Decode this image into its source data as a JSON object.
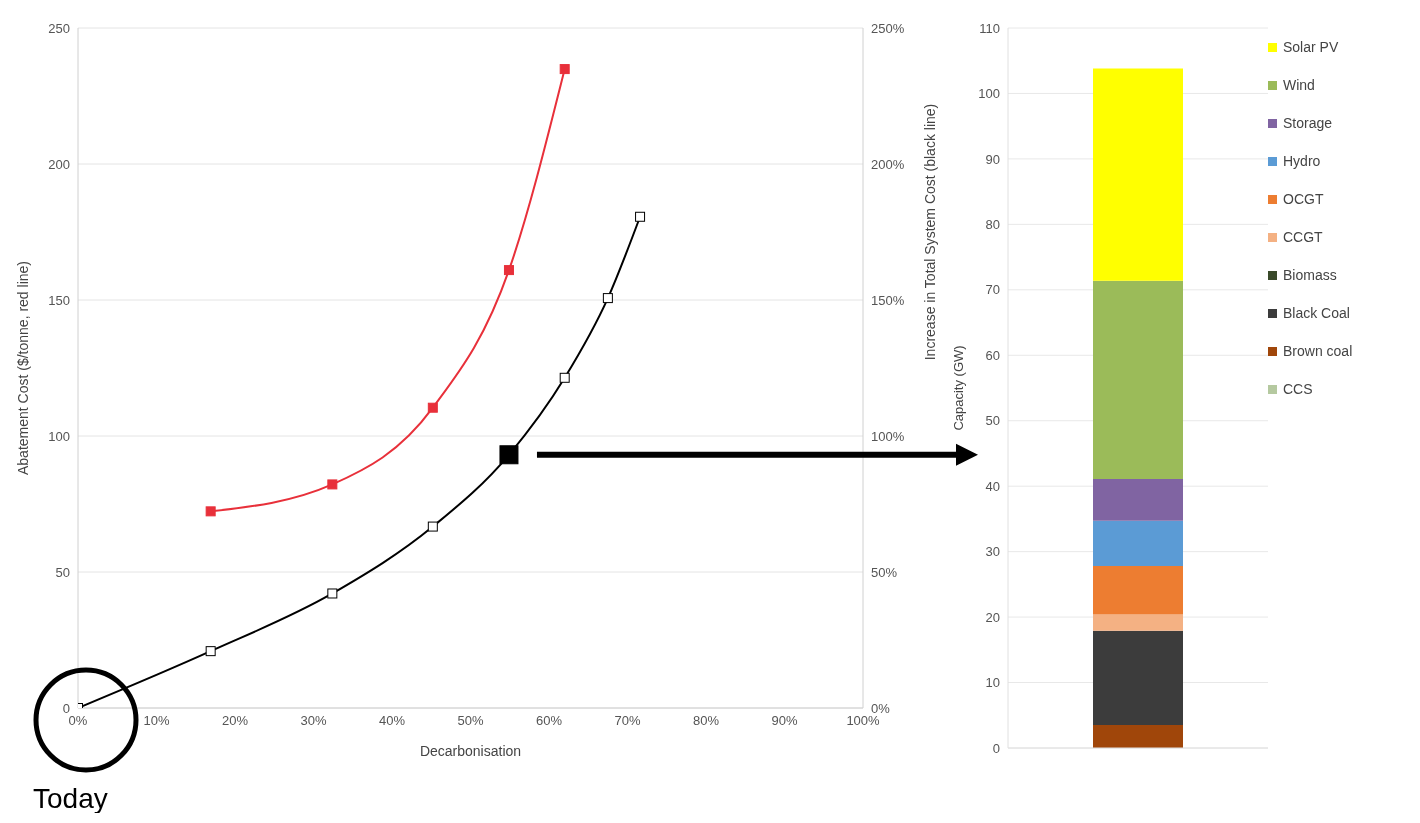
{
  "chart_data": [
    {
      "type": "line",
      "xlabel": "Decarbonisation",
      "ylabel": "Abatement Cost ($/tonne, red line)",
      "y2label": "Increase in Total System Cost (black line)",
      "xlim": [
        0,
        100
      ],
      "xticks": [
        {
          "value": 0,
          "label": "0%"
        },
        {
          "value": 10,
          "label": "10%"
        },
        {
          "value": 20,
          "label": "20%"
        },
        {
          "value": 30,
          "label": "30%"
        },
        {
          "value": 40,
          "label": "40%"
        },
        {
          "value": 50,
          "label": "50%"
        },
        {
          "value": 60,
          "label": "60%"
        },
        {
          "value": 70,
          "label": "70%"
        },
        {
          "value": 80,
          "label": "80%"
        },
        {
          "value": 90,
          "label": "90%"
        },
        {
          "value": 100,
          "label": "100%"
        }
      ],
      "ylim": [
        0,
        250
      ],
      "yticks": [
        0,
        50,
        100,
        150,
        200,
        250
      ],
      "y2lim": [
        0,
        250
      ],
      "y2ticks": [
        {
          "value": 0,
          "label": "0%"
        },
        {
          "value": 50,
          "label": "50%"
        },
        {
          "value": 100,
          "label": "100%"
        },
        {
          "value": 150,
          "label": "150%"
        },
        {
          "value": 200,
          "label": "200%"
        },
        {
          "value": 250,
          "label": "250%"
        }
      ],
      "grid": "y",
      "marker": "square",
      "line_style": "solid",
      "series": [
        {
          "color": "#e8303a",
          "x": [
            16.9,
            32.4,
            45.2,
            54.9,
            62.0
          ],
          "values": [
            72.3,
            82.2,
            110.4,
            161.0,
            234.9
          ]
        },
        {
          "color": "#000000",
          "axis": "y2",
          "x": [
            0,
            16.9,
            32.4,
            45.2,
            54.9,
            62.0,
            67.5,
            71.6
          ],
          "values": [
            0,
            20.9,
            42.1,
            66.7,
            93.1,
            121.4,
            150.7,
            180.6
          ]
        },
        {
          "type": "scatter",
          "color": "#000000",
          "axis": "y2",
          "x": [
            54.9
          ],
          "values": [
            93.1
          ]
        }
      ],
      "annotations": [
        {
          "text": "Today",
          "x": 0,
          "y": 0
        }
      ]
    },
    {
      "type": "bar",
      "stacked": true,
      "categories": [
        null
      ],
      "ylabel": "Capacity (GW)",
      "ylim": [
        0,
        110
      ],
      "yticks": [
        0,
        10,
        20,
        30,
        40,
        50,
        60,
        70,
        80,
        90,
        100,
        110
      ],
      "grid": "y",
      "legend": "right",
      "series": [
        {
          "name": "CCS",
          "color": "#b5c9a0",
          "values": [
            0
          ]
        },
        {
          "name": "Brown coal",
          "color": "#a0460a",
          "values": [
            3.5
          ]
        },
        {
          "name": "Black Coal",
          "color": "#3c3c3c",
          "values": [
            14.4
          ]
        },
        {
          "name": "Biomass",
          "color": "#3a4a2a",
          "values": [
            0
          ]
        },
        {
          "name": "CCGT",
          "color": "#f4b183",
          "values": [
            2.5
          ]
        },
        {
          "name": "OCGT",
          "color": "#ed7d31",
          "values": [
            7.4
          ]
        },
        {
          "name": "Hydro",
          "color": "#5b9bd5",
          "values": [
            6.9
          ]
        },
        {
          "name": "Storage",
          "color": "#8064a2",
          "values": [
            6.4
          ]
        },
        {
          "name": "Wind",
          "color": "#9bbb59",
          "values": [
            30.3
          ]
        },
        {
          "name": "Solar PV",
          "color": "#ffff00",
          "values": [
            32.4
          ]
        }
      ]
    }
  ]
}
